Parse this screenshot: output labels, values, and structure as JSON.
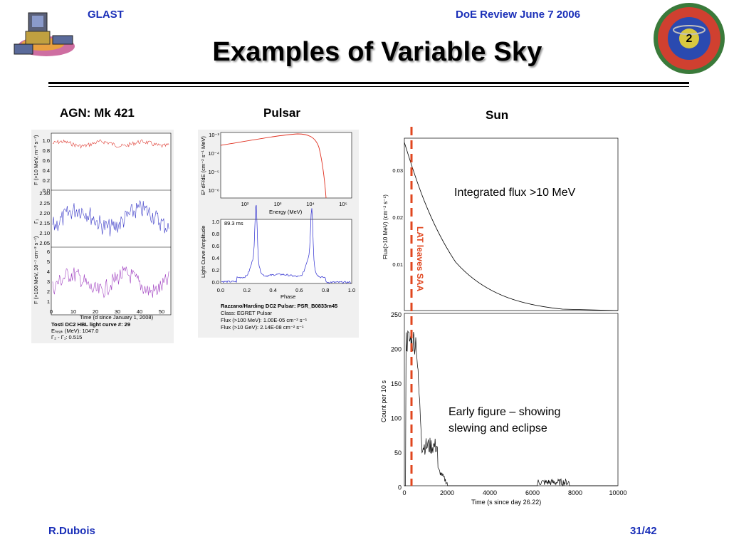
{
  "header": {
    "left": "GLAST",
    "right": "DoE Review June 7 2006"
  },
  "title": "Examples of Variable Sky",
  "footer": {
    "left": "R.Dubois",
    "right": "31/42"
  },
  "columns": {
    "agn": "AGN: Mk 421",
    "pulsar": "Pulsar",
    "sun": "Sun"
  },
  "agn_plot": {
    "ylabels": [
      "F (>10 MeV, m⁻² s⁻¹)",
      "Γ₁",
      "F (>100 MeV, 10⁻⁷ cm⁻² s⁻¹)"
    ],
    "top_ticks": [
      "1.0",
      "0.8",
      "0.6",
      "0.4",
      "0.2",
      "0.0"
    ],
    "mid_ticks": [
      "2.30",
      "2.25",
      "2.20",
      "2.15",
      "2.10",
      "2.05"
    ],
    "bot_ticks": [
      "6",
      "5",
      "4",
      "3",
      "2",
      "1"
    ],
    "x_ticks": [
      "0",
      "10",
      "20",
      "30",
      "40",
      "50"
    ],
    "xlabel": "Time (d since January 1, 2008)",
    "caption_lines": [
      "Tosti DC2 HBL light curve #:  29",
      "Eₕₑₐₖ (MeV):    1047.0",
      "Γ₂ - Γ₁:  0.515"
    ]
  },
  "pulsar_plot": {
    "top_ylabel": "E² dF/dE (cm⁻² s⁻¹ MeV)",
    "top_yticks": [
      "10⁻³",
      "10⁻⁴",
      "10⁻⁵",
      "10⁻⁶"
    ],
    "top_xticks": [
      "10²",
      "10³",
      "10⁴",
      "10⁵"
    ],
    "top_xlabel": "Energy (MeV)",
    "bot_ylabel": "Light Curve Amplitude",
    "bot_yticks": [
      "1.0",
      "0.8",
      "0.6",
      "0.4",
      "0.2",
      "0.0"
    ],
    "bot_xticks": [
      "0.0",
      "0.2",
      "0.4",
      "0.6",
      "0.8",
      "1.0"
    ],
    "bot_xlabel": "Phase",
    "period": "89.3 ms",
    "caption_lines": [
      "Razzano/Harding DC2 Pulsar:  PSR_B0833m45",
      "Class:  EGRET Pulsar",
      "Flux (>100 MeV):   1.00E-05 cm⁻² s⁻¹",
      "Flux (>10 GeV):   2.14E-08 cm⁻² s⁻¹"
    ]
  },
  "sun_plot": {
    "top_ylabel": "Flux(>10 MeV) (cm⁻² s⁻¹)",
    "top_yticks": [
      "0.03",
      "0.02",
      "0.01"
    ],
    "bot_ylabel": "Count per 10 s",
    "bot_yticks": [
      "250",
      "200",
      "150",
      "100",
      "50",
      "0"
    ],
    "xticks": [
      "0",
      "2000",
      "4000",
      "6000",
      "8000",
      "10000"
    ],
    "xlabel": "Time (s since day 26.22)",
    "saa_label": "LAT leaves SAA",
    "integrated_label": "Integrated flux >10 MeV",
    "early_label_line1": "Early figure – showing",
    "early_label_line2": "slewing and eclipse"
  },
  "colors": {
    "header_text": "#1a2fb8",
    "agn_top": "#e0443c",
    "agn_mid": "#3d3dc8",
    "agn_bot": "#a040c0",
    "pulsar_model": "#e03020",
    "pulsar_lc": "#2a2ad0",
    "saa_line": "#e0461e"
  }
}
